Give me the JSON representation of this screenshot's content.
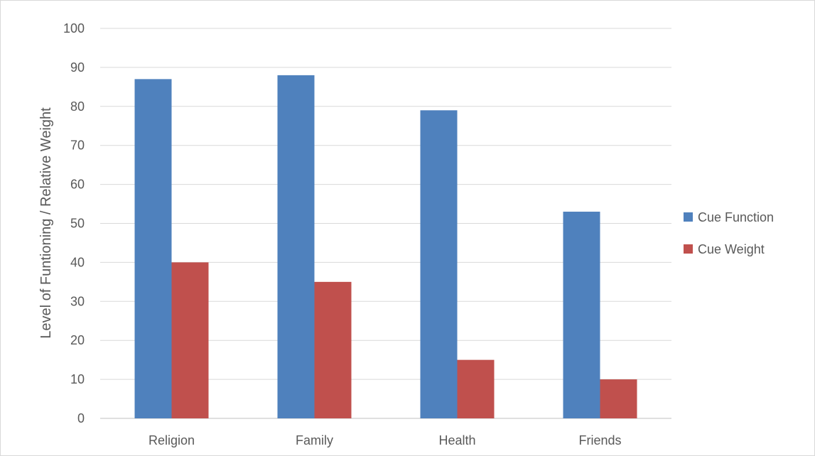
{
  "chart_data": {
    "type": "bar",
    "title": "",
    "xlabel": "",
    "ylabel": "Level of Funtioning / Relative Weight",
    "categories": [
      "Religion",
      "Family",
      "Health",
      "Friends"
    ],
    "series": [
      {
        "name": "Cue Function",
        "color": "#4f81bd",
        "values": [
          87,
          88,
          79,
          53
        ]
      },
      {
        "name": "Cue Weight",
        "color": "#c0504d",
        "values": [
          40,
          35,
          15,
          10
        ]
      }
    ],
    "ylim": [
      0,
      100
    ],
    "yticks": [
      0,
      10,
      20,
      30,
      40,
      50,
      60,
      70,
      80,
      90,
      100
    ],
    "grid": true,
    "legend": "right"
  }
}
